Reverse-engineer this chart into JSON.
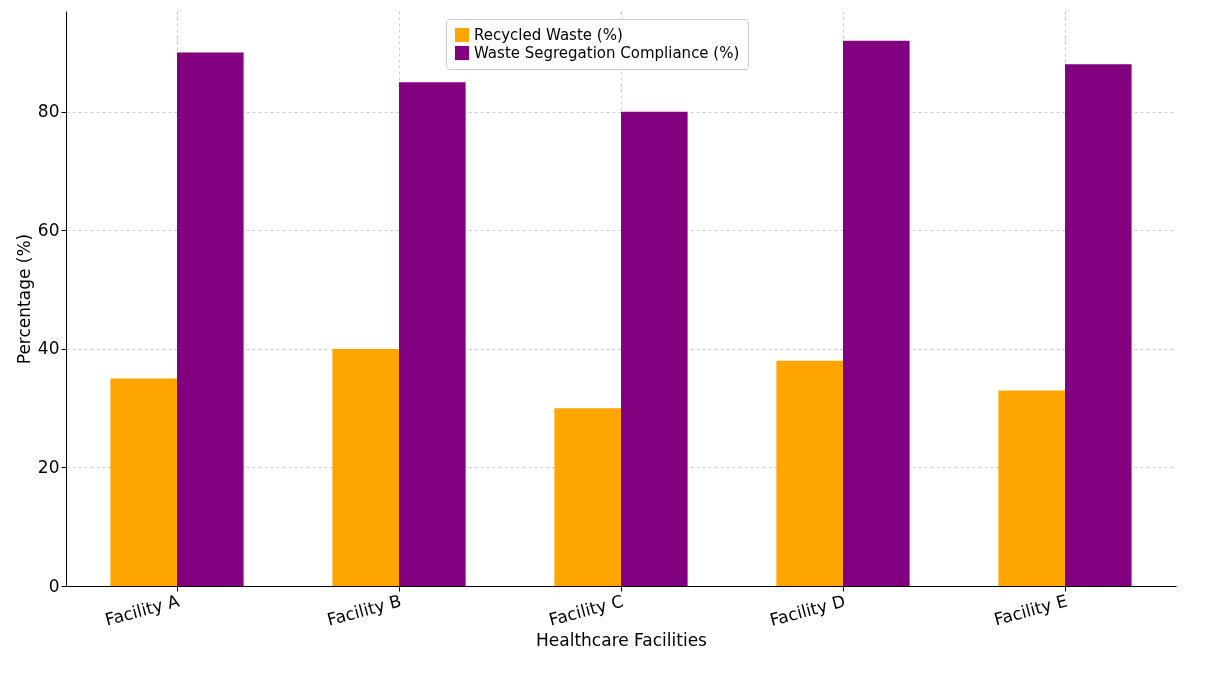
{
  "chart_data": {
    "type": "bar",
    "xlabel": "Healthcare Facilities",
    "ylabel": "Percentage (%)",
    "categories": [
      "Facility A",
      "Facility B",
      "Facility C",
      "Facility D",
      "Facility E"
    ],
    "series": [
      {
        "name": "Recycled Waste (%)",
        "color": "#ffa500",
        "values": [
          35,
          40,
          30,
          38,
          33
        ]
      },
      {
        "name": "Waste Segregation Compliance (%)",
        "color": "#800080",
        "values": [
          90,
          85,
          80,
          92,
          88
        ]
      }
    ],
    "ylim": [
      0,
      97
    ],
    "yticks": [
      0,
      20,
      40,
      60,
      80
    ],
    "grid": true,
    "legend": "top"
  }
}
